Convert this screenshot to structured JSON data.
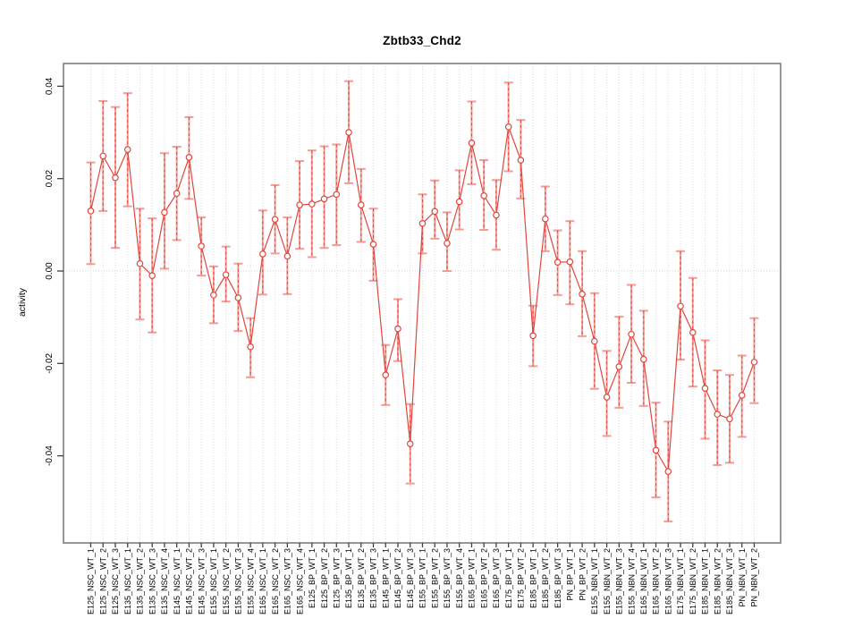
{
  "chart_data": {
    "type": "line",
    "title": "Zbtb33_Chd2",
    "ylabel": "activity",
    "xlabel": "",
    "legend": "none",
    "grid": "dotted vertical gridline at every category; dotted horizontal line at y=0",
    "marker": "open-circle with error bars",
    "ylim": [
      -0.0589,
      0.0449
    ],
    "yticks": [
      0.04,
      0.02,
      0.0,
      -0.02,
      -0.04
    ],
    "ytick_labels": [
      "0.04",
      "0.02",
      "0.00",
      "-0.02",
      "-0.04"
    ],
    "categories": [
      "E125_NSC_WT_1",
      "E125_NSC_WT_2",
      "E125_NSC_WT_3",
      "E135_NSC_WT_1",
      "E135_NSC_WT_2",
      "E135_NSC_WT_3",
      "E135_NSC_WT_4",
      "E145_NSC_WT_1",
      "E145_NSC_WT_2",
      "E145_NSC_WT_3",
      "E155_NSC_WT_1",
      "E155_NSC_WT_2",
      "E155_NSC_WT_3",
      "E155_NSC_WT_4",
      "E165_NSC_WT_1",
      "E165_NSC_WT_2",
      "E165_NSC_WT_3",
      "E165_NSC_WT_4",
      "E125_BP_WT_1",
      "E125_BP_WT_2",
      "E125_BP_WT_3",
      "E135_BP_WT_1",
      "E135_BP_WT_2",
      "E135_BP_WT_3",
      "E145_BP_WT_1",
      "E145_BP_WT_2",
      "E145_BP_WT_3",
      "E155_BP_WT_1",
      "E155_BP_WT_2",
      "E155_BP_WT_3",
      "E155_BP_WT_4",
      "E165_BP_WT_1",
      "E165_BP_WT_2",
      "E165_BP_WT_3",
      "E175_BP_WT_1",
      "E175_BP_WT_2",
      "E185_BP_WT_1",
      "E185_BP_WT_2",
      "E185_BP_WT_3",
      "PN_BP_WT_1",
      "PN_BP_WT_2",
      "E155_NBN_WT_1",
      "E155_NBN_WT_2",
      "E155_NBN_WT_3",
      "E155_NBN_WT_4",
      "E165_NBN_WT_1",
      "E165_NBN_WT_2",
      "E165_NBN_WT_3",
      "E175_NBN_WT_1",
      "E175_NBN_WT_2",
      "E185_NBN_WT_1",
      "E185_NBN_WT_2",
      "E185_NBN_WT_3",
      "PN_NBN_WT_1",
      "PN_NBN_WT_2"
    ],
    "values": [
      0.013,
      0.0249,
      0.0202,
      0.0263,
      0.0016,
      -0.001,
      0.0127,
      0.0168,
      0.0246,
      0.0054,
      -0.0052,
      -0.0008,
      -0.0058,
      -0.0164,
      0.0037,
      0.0112,
      0.0032,
      0.0143,
      0.0145,
      0.0156,
      0.0166,
      0.03,
      0.0143,
      0.0058,
      -0.0225,
      -0.0125,
      -0.0374,
      0.0103,
      0.0129,
      0.006,
      0.015,
      0.0277,
      0.0163,
      0.0121,
      0.0312,
      0.024,
      -0.014,
      0.0113,
      0.0019,
      0.002,
      -0.005,
      -0.0152,
      -0.0273,
      -0.0207,
      -0.0137,
      -0.0191,
      -0.0388,
      -0.0434,
      -0.0076,
      -0.0133,
      -0.0254,
      -0.031,
      -0.032,
      -0.0269,
      -0.0197
    ],
    "ci_low": [
      0.0015,
      0.013,
      0.005,
      0.014,
      -0.0105,
      -0.0133,
      0.0005,
      0.0067,
      0.0156,
      -0.001,
      -0.0113,
      -0.0066,
      -0.013,
      -0.023,
      -0.0051,
      0.0038,
      -0.005,
      0.0048,
      0.003,
      0.005,
      0.0056,
      0.019,
      0.0063,
      -0.0021,
      -0.029,
      -0.0195,
      -0.046,
      0.0038,
      0.007,
      0.0,
      0.009,
      0.0188,
      0.0089,
      0.0046,
      0.0216,
      0.0157,
      -0.0206,
      0.0043,
      -0.0052,
      -0.0072,
      -0.0141,
      -0.0255,
      -0.0357,
      -0.0296,
      -0.0242,
      -0.0292,
      -0.049,
      -0.0542,
      -0.0192,
      -0.025,
      -0.0363,
      -0.042,
      -0.0415,
      -0.0359,
      -0.0286
    ],
    "ci_high": [
      0.0235,
      0.0368,
      0.0355,
      0.0385,
      0.0135,
      0.0114,
      0.0255,
      0.0269,
      0.0333,
      0.0116,
      0.001,
      0.0053,
      0.0016,
      -0.0102,
      0.0131,
      0.0186,
      0.0116,
      0.0238,
      0.0261,
      0.027,
      0.0274,
      0.0411,
      0.0221,
      0.0135,
      -0.016,
      -0.0061,
      -0.0288,
      0.0166,
      0.0196,
      0.0127,
      0.0218,
      0.0367,
      0.024,
      0.0197,
      0.0408,
      0.0327,
      -0.0075,
      0.0183,
      0.0088,
      0.0108,
      0.0043,
      -0.0048,
      -0.0173,
      -0.0099,
      -0.003,
      -0.0086,
      -0.0285,
      -0.0326,
      0.0043,
      -0.0015,
      -0.015,
      -0.0215,
      -0.0225,
      -0.0183,
      -0.0102
    ]
  },
  "colors": {
    "series_red": "#e0463e",
    "error_bar_salmon": "#f59b94",
    "error_bar_dash_red": "#e0463e",
    "point_fill": "#ffffff",
    "gridline": "#dcdcdc",
    "zero_line": "#d6d6d6",
    "frame": "#7d7d7d",
    "tick": "#404040",
    "tick_label": "#000000",
    "background": "#ffffff"
  }
}
